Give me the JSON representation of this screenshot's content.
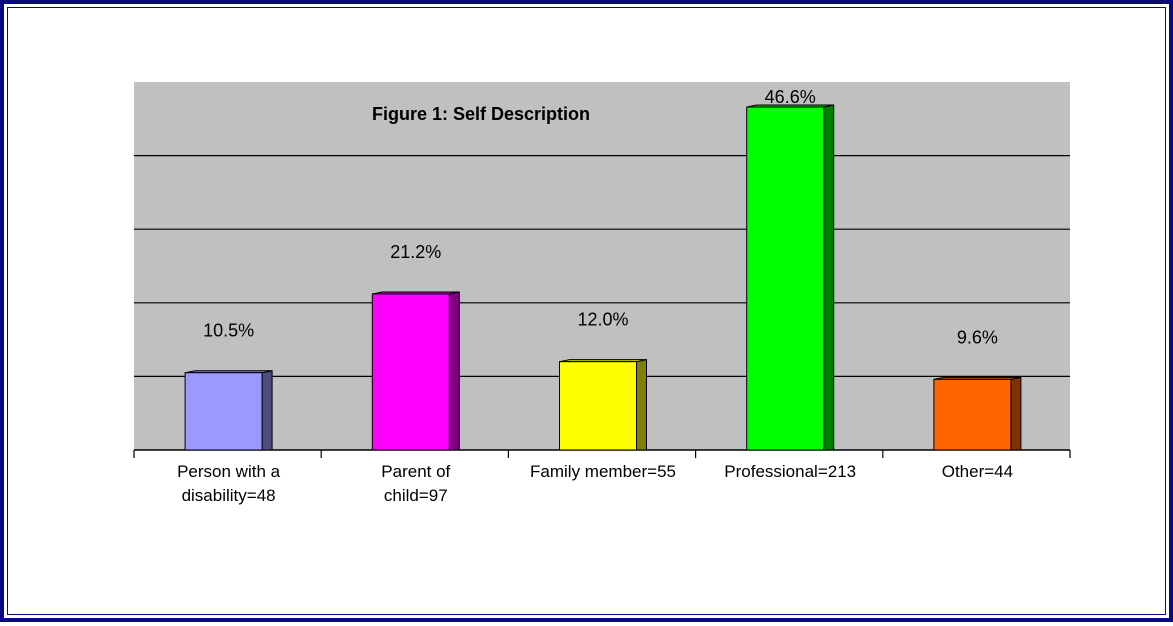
{
  "chart_data": {
    "type": "bar",
    "title": "Figure 1: Self Description",
    "xlabel": "",
    "ylabel": "",
    "ylim": [
      0,
      50
    ],
    "grid": true,
    "legend": "none",
    "plot_background": "#c0c0c0",
    "categories": [
      "Person with a disability=48",
      "Parent of child=97",
      "Family member=55",
      "Professional=213",
      "Other=44"
    ],
    "values": [
      10.5,
      21.2,
      12.0,
      46.6,
      9.6
    ],
    "value_labels": [
      "10.5%",
      "21.2%",
      "12.0%",
      "46.6%",
      "9.6%"
    ],
    "colors": [
      "#9999ff",
      "#ff00ff",
      "#ffff00",
      "#00ff00",
      "#ff6600"
    ]
  }
}
